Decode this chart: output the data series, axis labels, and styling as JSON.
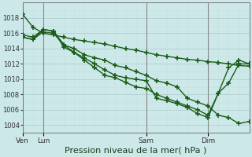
{
  "title": "Pression niveau de la mer( hPa )",
  "background_color": "#cce8e8",
  "grid_color_major": "#b0d0d0",
  "grid_color_minor": "#c8e0e0",
  "line_color": "#1a5c1a",
  "marker": "+",
  "marker_size": 4,
  "marker_lw": 1.2,
  "line_width": 1.0,
  "ylim": [
    1003,
    1020
  ],
  "yticks": [
    1004,
    1006,
    1008,
    1010,
    1012,
    1014,
    1016,
    1018
  ],
  "ylabel_size": 6,
  "xlabel": "Pression niveau de la mer( hPa )",
  "xlabel_size": 8,
  "xtick_labels": [
    "Ven",
    "Lun",
    "Sam",
    "Dim"
  ],
  "xtick_positions": [
    0,
    2,
    12,
    18
  ],
  "xlim": [
    0,
    22
  ],
  "vlines": [
    0,
    2,
    12,
    18
  ],
  "vline_color": "#888888",
  "series": [
    [
      1018.5,
      1016.8,
      1016.0,
      1015.8,
      1015.5,
      1015.2,
      1015.0,
      1014.8,
      1014.6,
      1014.3,
      1014.0,
      1013.8,
      1013.5,
      1013.2,
      1013.0,
      1012.8,
      1012.6,
      1012.5,
      1012.3,
      1012.2,
      1012.0,
      1011.8,
      1011.7
    ],
    [
      1015.8,
      1015.5,
      1016.5,
      1016.3,
      1014.2,
      1013.5,
      1012.8,
      1012.0,
      1011.2,
      1010.5,
      1010.2,
      1010.0,
      1009.8,
      1007.5,
      1007.2,
      1006.8,
      1006.3,
      1005.5,
      1005.0,
      1008.2,
      1011.5,
      1012.5,
      1012.0
    ],
    [
      1015.5,
      1015.2,
      1016.5,
      1016.3,
      1014.5,
      1014.0,
      1013.2,
      1012.8,
      1012.5,
      1011.8,
      1011.5,
      1011.0,
      1010.5,
      1009.8,
      1009.5,
      1009.0,
      1007.5,
      1007.0,
      1006.5,
      1005.3,
      1005.0,
      1004.2,
      1004.5
    ],
    [
      1015.5,
      1015.2,
      1016.2,
      1016.0,
      1014.5,
      1013.5,
      1012.5,
      1011.5,
      1010.5,
      1010.2,
      1009.6,
      1009.0,
      1008.8,
      1008.0,
      1007.5,
      1007.0,
      1006.5,
      1006.0,
      1005.3,
      1008.2,
      1009.5,
      1012.0,
      1012.0
    ]
  ]
}
